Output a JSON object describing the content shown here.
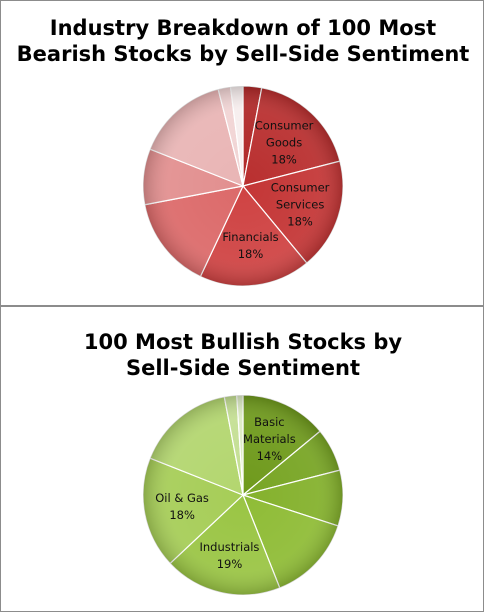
{
  "chart_data": [
    {
      "type": "pie",
      "title_lines": [
        "Industry Breakdown of 100 Most",
        "Bearish Stocks by Sell-Side Sentiment"
      ],
      "start_angle_deg": 0,
      "colors": [
        "#b02828",
        "#b92f2f",
        "#c43636",
        "#cf4343",
        "#dc6a6a",
        "#e28f8f",
        "#e9b5b5",
        "#f1d4d4",
        "#f7eeee"
      ],
      "slices": [
        {
          "label": "",
          "value": 3
        },
        {
          "label": "Consumer Goods",
          "value": 18,
          "display": [
            "Consumer",
            "Goods",
            "18%"
          ]
        },
        {
          "label": "Consumer Services",
          "value": 18,
          "display": [
            "Consumer",
            "Services",
            "18%"
          ]
        },
        {
          "label": "Financials",
          "value": 18,
          "display": [
            "Financials",
            "18%"
          ]
        },
        {
          "label": "",
          "value": 15
        },
        {
          "label": "",
          "value": 9
        },
        {
          "label": "",
          "value": 15
        },
        {
          "label": "",
          "value": 2
        },
        {
          "label": "",
          "value": 2
        }
      ]
    },
    {
      "type": "pie",
      "title_lines": [
        "100 Most Bullish Stocks by",
        "Sell-Side Sentiment"
      ],
      "start_angle_deg": 0,
      "colors": [
        "#6f9a1c",
        "#78a524",
        "#84b12c",
        "#8fbc36",
        "#9ac544",
        "#a6cd57",
        "#b3d66f",
        "#c4df93",
        "#dcebc3",
        "#eef4e4"
      ],
      "slices": [
        {
          "label": "Basic Materials",
          "value": 14,
          "display": [
            "Basic",
            "Materials",
            "14%"
          ]
        },
        {
          "label": "",
          "value": 7
        },
        {
          "label": "",
          "value": 9
        },
        {
          "label": "",
          "value": 14
        },
        {
          "label": "Industrials",
          "value": 19,
          "display": [
            "Industrials",
            "19%"
          ]
        },
        {
          "label": "Oil & Gas",
          "value": 18,
          "display": [
            "Oil & Gas",
            "18%"
          ]
        },
        {
          "label": "",
          "value": 16
        },
        {
          "label": "",
          "value": 2
        },
        {
          "label": "",
          "value": 1
        }
      ]
    }
  ]
}
